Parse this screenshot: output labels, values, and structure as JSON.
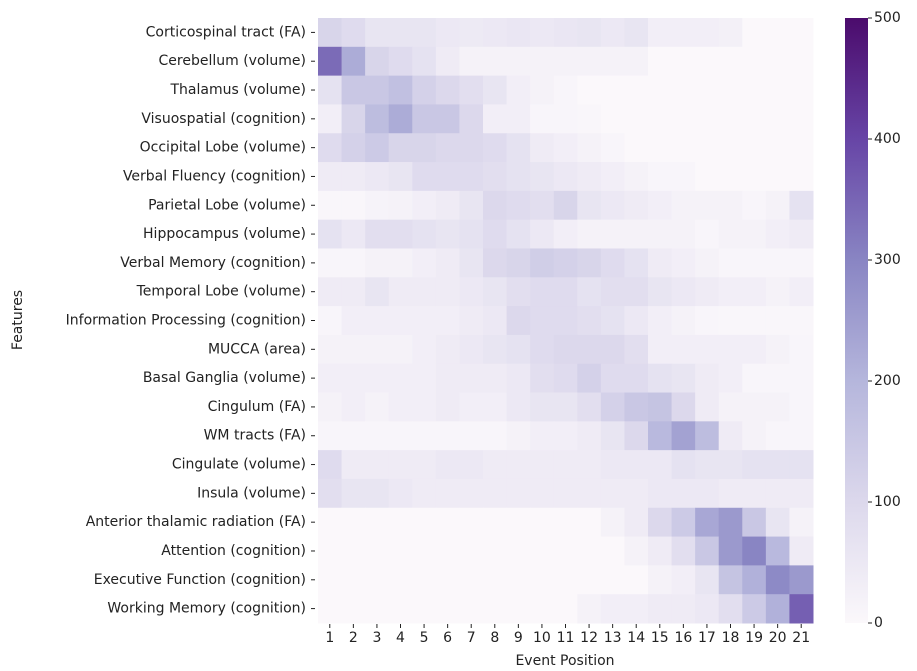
{
  "chart_data": {
    "type": "heatmap",
    "x_label": "Event Position",
    "y_label": "Features",
    "x_categories": [
      "1",
      "2",
      "3",
      "4",
      "5",
      "6",
      "7",
      "8",
      "9",
      "10",
      "11",
      "12",
      "13",
      "14",
      "15",
      "16",
      "17",
      "18",
      "19",
      "20",
      "21"
    ],
    "y_categories": [
      "Corticospinal tract (FA)",
      "Cerebellum (volume)",
      "Thalamus (volume)",
      "Visuospatial (cognition)",
      "Occipital Lobe (volume)",
      "Verbal Fluency (cognition)",
      "Parietal Lobe (volume)",
      "Hippocampus (volume)",
      "Verbal Memory (cognition)",
      "Temporal Lobe (volume)",
      "Information Processing (cognition)",
      "MUCCA (area)",
      "Basal Ganglia (volume)",
      "Cingulum (FA)",
      "WM tracts (FA)",
      "Cingulate (volume)",
      "Insula (volume)",
      "Anterior thalamic radiation (FA)",
      "Attention (cognition)",
      "Executive Function (cognition)",
      "Working Memory (cognition)"
    ],
    "values": [
      [
        110,
        90,
        60,
        60,
        60,
        50,
        45,
        50,
        55,
        50,
        55,
        60,
        50,
        60,
        30,
        30,
        30,
        25,
        0,
        0,
        0
      ],
      [
        340,
        220,
        110,
        90,
        70,
        40,
        20,
        20,
        20,
        20,
        20,
        20,
        20,
        20,
        0,
        0,
        0,
        0,
        0,
        0,
        0
      ],
      [
        70,
        150,
        150,
        170,
        120,
        100,
        80,
        60,
        30,
        20,
        10,
        0,
        0,
        0,
        0,
        0,
        0,
        0,
        0,
        0,
        0
      ],
      [
        30,
        110,
        180,
        220,
        150,
        150,
        100,
        30,
        30,
        10,
        10,
        5,
        0,
        0,
        0,
        0,
        0,
        0,
        0,
        0,
        0
      ],
      [
        90,
        120,
        140,
        110,
        110,
        100,
        100,
        90,
        70,
        40,
        30,
        20,
        10,
        0,
        0,
        0,
        0,
        0,
        0,
        0,
        0
      ],
      [
        40,
        40,
        50,
        60,
        90,
        90,
        90,
        80,
        70,
        60,
        50,
        40,
        30,
        20,
        10,
        10,
        0,
        0,
        0,
        0,
        0
      ],
      [
        5,
        5,
        15,
        20,
        30,
        40,
        60,
        100,
        90,
        80,
        110,
        60,
        50,
        40,
        30,
        20,
        20,
        20,
        10,
        20,
        70
      ],
      [
        70,
        50,
        80,
        80,
        70,
        60,
        70,
        90,
        70,
        50,
        30,
        20,
        20,
        20,
        20,
        20,
        10,
        20,
        20,
        30,
        40
      ],
      [
        10,
        10,
        20,
        20,
        30,
        40,
        60,
        100,
        110,
        130,
        120,
        110,
        90,
        70,
        40,
        30,
        20,
        10,
        10,
        10,
        10
      ],
      [
        40,
        40,
        60,
        40,
        40,
        40,
        50,
        60,
        80,
        90,
        90,
        70,
        80,
        80,
        60,
        50,
        40,
        30,
        30,
        20,
        30
      ],
      [
        10,
        30,
        30,
        30,
        30,
        30,
        40,
        50,
        100,
        90,
        90,
        80,
        70,
        50,
        30,
        20,
        10,
        5,
        5,
        5,
        5
      ],
      [
        20,
        20,
        20,
        20,
        30,
        40,
        50,
        60,
        70,
        90,
        100,
        100,
        100,
        80,
        30,
        30,
        30,
        30,
        30,
        20,
        10
      ],
      [
        30,
        30,
        30,
        30,
        30,
        40,
        40,
        40,
        50,
        80,
        90,
        120,
        90,
        90,
        70,
        60,
        40,
        30,
        10,
        10,
        10
      ],
      [
        20,
        30,
        20,
        30,
        30,
        40,
        30,
        30,
        50,
        60,
        60,
        80,
        120,
        150,
        160,
        100,
        40,
        20,
        20,
        20,
        10
      ],
      [
        10,
        10,
        10,
        10,
        10,
        10,
        10,
        10,
        20,
        30,
        30,
        40,
        60,
        100,
        190,
        240,
        180,
        40,
        20,
        10,
        10
      ],
      [
        90,
        40,
        40,
        40,
        40,
        50,
        50,
        40,
        40,
        40,
        40,
        40,
        50,
        50,
        50,
        70,
        60,
        60,
        70,
        70,
        70
      ],
      [
        80,
        60,
        60,
        50,
        40,
        40,
        40,
        40,
        40,
        40,
        40,
        40,
        40,
        40,
        50,
        50,
        50,
        40,
        40,
        40,
        40
      ],
      [
        0,
        0,
        0,
        0,
        0,
        0,
        0,
        0,
        0,
        0,
        0,
        0,
        20,
        40,
        100,
        140,
        230,
        260,
        150,
        60,
        20
      ],
      [
        0,
        0,
        0,
        0,
        0,
        0,
        0,
        0,
        0,
        0,
        0,
        0,
        0,
        20,
        40,
        80,
        150,
        260,
        300,
        190,
        40
      ],
      [
        0,
        0,
        0,
        0,
        0,
        0,
        0,
        0,
        0,
        0,
        0,
        0,
        0,
        0,
        20,
        30,
        60,
        160,
        210,
        290,
        260
      ],
      [
        0,
        0,
        0,
        0,
        0,
        0,
        0,
        0,
        0,
        0,
        0,
        20,
        30,
        30,
        40,
        40,
        50,
        80,
        140,
        210,
        360
      ]
    ],
    "clim": [
      0,
      500
    ],
    "cticks": [
      0,
      100,
      200,
      300,
      400,
      500
    ],
    "colormap": [
      "#fbf8fb",
      "#dcd8ec",
      "#b5b6dc",
      "#8985c3",
      "#6745a6",
      "#4b0b6c"
    ]
  }
}
